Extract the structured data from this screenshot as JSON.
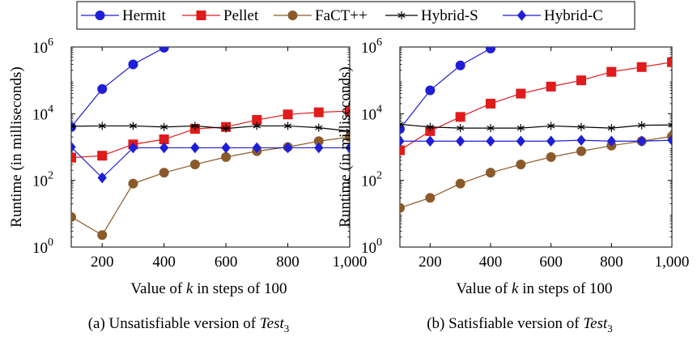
{
  "legend": {
    "entries": [
      {
        "name": "Hermit",
        "color": "#1f1fd6",
        "marker": "circle"
      },
      {
        "name": "Pellet",
        "color": "#e01b1b",
        "marker": "square"
      },
      {
        "name": "FaCT++",
        "color": "#8b5a2b",
        "marker": "circle"
      },
      {
        "name": "Hybrid-S",
        "color": "#000000",
        "marker": "star"
      },
      {
        "name": "Hybrid-C",
        "color": "#1f1fd6",
        "marker": "diamond"
      }
    ]
  },
  "chart_data": [
    {
      "type": "line",
      "caption_prefix": "(a) Unsatisfiable version of ",
      "caption_var": "Test",
      "caption_sub": "3",
      "xlabel_prefix": "Value of ",
      "xlabel_var": "k",
      "xlabel_suffix": " in steps of 100",
      "ylabel": "Runtime (in milliseconds)",
      "yscale": "log",
      "xlim": [
        100,
        1000
      ],
      "ylim": [
        1,
        1000000
      ],
      "xticks": [
        200,
        400,
        600,
        800,
        1000
      ],
      "xtick_labels": [
        "200",
        "400",
        "600",
        "800",
        "1,000"
      ],
      "yticks": [
        1,
        100,
        10000,
        1000000
      ],
      "ytick_base": "10",
      "ytick_exps": [
        "0",
        "2",
        "4",
        "6"
      ],
      "series": [
        {
          "name": "Hermit",
          "x": [
            100,
            200,
            300,
            400
          ],
          "values": [
            4000,
            55000,
            300000,
            950000
          ]
        },
        {
          "name": "Pellet",
          "x": [
            100,
            200,
            300,
            400,
            500,
            600,
            700,
            800,
            900,
            1000
          ],
          "values": [
            480,
            550,
            1200,
            1700,
            3500,
            4000,
            6500,
            9500,
            11000,
            12000
          ]
        },
        {
          "name": "FaCT++",
          "x": [
            100,
            200,
            300,
            400,
            500,
            600,
            700,
            800,
            900,
            1000
          ],
          "values": [
            8,
            2.3,
            80,
            170,
            300,
            500,
            750,
            1000,
            1500,
            2000
          ]
        },
        {
          "name": "Hybrid-S",
          "x": [
            100,
            200,
            300,
            400,
            500,
            600,
            700,
            800,
            900,
            1000
          ],
          "values": [
            4200,
            4300,
            4300,
            4000,
            4300,
            3600,
            4300,
            4300,
            3800,
            3000
          ]
        },
        {
          "name": "Hybrid-C",
          "x": [
            100,
            200,
            300,
            400,
            500,
            600,
            700,
            800,
            900,
            1000
          ],
          "values": [
            1000,
            120,
            950,
            950,
            950,
            950,
            950,
            950,
            950,
            950
          ]
        }
      ]
    },
    {
      "type": "line",
      "caption_prefix": "(b) Satisfiable version of ",
      "caption_var": "Test",
      "caption_sub": "3",
      "xlabel_prefix": "Value of ",
      "xlabel_var": "k",
      "xlabel_suffix": " in steps of 100",
      "ylabel": "Runtime (in milliseconds)",
      "yscale": "log",
      "xlim": [
        100,
        1000
      ],
      "ylim": [
        1,
        1000000
      ],
      "xticks": [
        200,
        400,
        600,
        800,
        1000
      ],
      "xtick_labels": [
        "200",
        "400",
        "600",
        "800",
        "1,000"
      ],
      "yticks": [
        1,
        100,
        10000,
        1000000
      ],
      "ytick_base": "10",
      "ytick_exps": [
        "0",
        "2",
        "4",
        "6"
      ],
      "series": [
        {
          "name": "Hermit",
          "x": [
            100,
            200,
            300,
            400
          ],
          "values": [
            3500,
            50000,
            280000,
            900000
          ]
        },
        {
          "name": "Pellet",
          "x": [
            100,
            200,
            300,
            400,
            500,
            600,
            700,
            800,
            900,
            1000
          ],
          "values": [
            800,
            3000,
            8000,
            20000,
            40000,
            65000,
            100000,
            180000,
            250000,
            350000
          ]
        },
        {
          "name": "FaCT++",
          "x": [
            100,
            200,
            300,
            400,
            500,
            600,
            700,
            800,
            900,
            1000
          ],
          "values": [
            15,
            30,
            80,
            170,
            300,
            500,
            750,
            1100,
            1500,
            2100
          ]
        },
        {
          "name": "Hybrid-S",
          "x": [
            100,
            200,
            300,
            400,
            500,
            600,
            700,
            800,
            900,
            1000
          ],
          "values": [
            4800,
            4000,
            3700,
            3700,
            3700,
            4300,
            4000,
            3700,
            4500,
            4600
          ]
        },
        {
          "name": "Hybrid-C",
          "x": [
            100,
            200,
            300,
            400,
            500,
            600,
            700,
            800,
            900,
            1000
          ],
          "values": [
            1500,
            1500,
            1500,
            1500,
            1500,
            1500,
            1600,
            1500,
            1500,
            1600
          ]
        }
      ]
    }
  ]
}
